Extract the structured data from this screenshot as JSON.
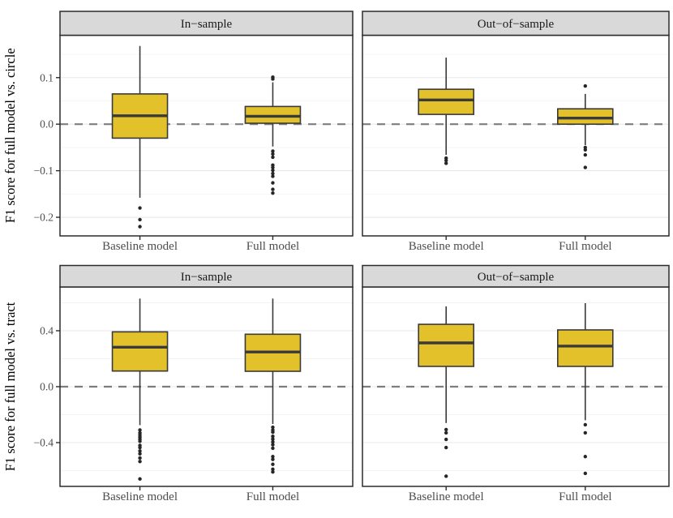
{
  "figure": {
    "name": "faceted-boxplot-figure",
    "background": "#ffffff",
    "box_fill": "#e2c12b",
    "box_stroke": "#3a3a3a",
    "median_stroke": "#3a3a3a",
    "outlier_color": "#262626",
    "strip_fill": "#d9d9d9",
    "strip_border": "#2b2b2b",
    "panel_border": "#2b2b2b",
    "grid_major": "#e8e8e8",
    "grid_minor": "#f4f4f4",
    "zero_line_color": "#7d7d7d"
  },
  "chart_data": [
    {
      "type": "boxplot",
      "title": "",
      "ylabel": "F1 score for full model vs. circle",
      "xlabel": "",
      "categories": [
        "Baseline model",
        "Full model"
      ],
      "facet_labels": [
        "In−sample",
        "Out−of−sample"
      ],
      "ylim": [
        -0.24,
        0.191
      ],
      "zero_line": 0,
      "grid": true,
      "yticks": {
        "major": [
          0.1,
          0.0,
          -0.1,
          -0.2
        ],
        "minor": [
          0.15,
          0.05,
          -0.05,
          -0.15
        ],
        "labels": [
          "0.1",
          "0.0",
          "−0.1",
          "−0.2"
        ]
      },
      "facets": [
        {
          "label": "In−sample",
          "boxes": [
            {
              "category": "Baseline model",
              "whisker_low": -0.158,
              "q1": -0.03,
              "median": 0.018,
              "q3": 0.065,
              "whisker_high": 0.168,
              "outliers": [
                -0.18,
                -0.205,
                -0.22
              ]
            },
            {
              "category": "Full model",
              "whisker_low": -0.048,
              "q1": 0.002,
              "median": 0.017,
              "q3": 0.038,
              "whisker_high": 0.09,
              "outliers": [
                0.097,
                0.101,
                -0.058,
                -0.064,
                -0.071,
                -0.088,
                -0.093,
                -0.099,
                -0.106,
                -0.112,
                -0.126,
                -0.14,
                -0.148
              ]
            }
          ]
        },
        {
          "label": "Out−of−sample",
          "boxes": [
            {
              "category": "Baseline model",
              "whisker_low": -0.066,
              "q1": 0.021,
              "median": 0.052,
              "q3": 0.075,
              "whisker_high": 0.143,
              "outliers": [
                -0.073,
                -0.078,
                -0.084
              ]
            },
            {
              "category": "Full model",
              "whisker_low": -0.045,
              "q1": 0.0,
              "median": 0.013,
              "q3": 0.033,
              "whisker_high": 0.065,
              "outliers": [
                0.082,
                -0.05,
                -0.055,
                -0.066,
                -0.093
              ]
            }
          ]
        }
      ]
    },
    {
      "type": "boxplot",
      "title": "",
      "ylabel": "F1 score for full model vs. tract",
      "xlabel": "",
      "categories": [
        "Baseline model",
        "Full model"
      ],
      "facet_labels": [
        "In−sample",
        "Out−of−sample"
      ],
      "ylim": [
        -0.713,
        0.713
      ],
      "zero_line": 0,
      "grid": true,
      "yticks": {
        "major": [
          0.4,
          0.0,
          -0.4
        ],
        "minor": [
          0.6,
          0.2,
          -0.2,
          -0.6
        ],
        "labels": [
          "0.4",
          "0.0",
          "−0.4"
        ]
      },
      "facets": [
        {
          "label": "In−sample",
          "boxes": [
            {
              "category": "Baseline model",
              "whisker_low": -0.275,
              "q1": 0.112,
              "median": 0.282,
              "q3": 0.392,
              "whisker_high": 0.63,
              "outliers": [
                -0.31,
                -0.33,
                -0.345,
                -0.36,
                -0.375,
                -0.39,
                -0.42,
                -0.435,
                -0.46,
                -0.48,
                -0.51,
                -0.535,
                -0.66
              ]
            },
            {
              "category": "Full model",
              "whisker_low": -0.267,
              "q1": 0.11,
              "median": 0.248,
              "q3": 0.375,
              "whisker_high": 0.63,
              "outliers": [
                -0.29,
                -0.31,
                -0.325,
                -0.355,
                -0.375,
                -0.395,
                -0.415,
                -0.44,
                -0.5,
                -0.52,
                -0.555,
                -0.59,
                -0.61
              ]
            }
          ]
        },
        {
          "label": "Out−of−sample",
          "boxes": [
            {
              "category": "Baseline model",
              "whisker_low": -0.26,
              "q1": 0.145,
              "median": 0.313,
              "q3": 0.446,
              "whisker_high": 0.574,
              "outliers": [
                -0.307,
                -0.33,
                -0.377,
                -0.435,
                -0.64
              ]
            },
            {
              "category": "Full model",
              "whisker_low": -0.24,
              "q1": 0.145,
              "median": 0.29,
              "q3": 0.406,
              "whisker_high": 0.597,
              "outliers": [
                -0.272,
                -0.33,
                -0.5,
                -0.62
              ]
            }
          ]
        }
      ]
    }
  ]
}
